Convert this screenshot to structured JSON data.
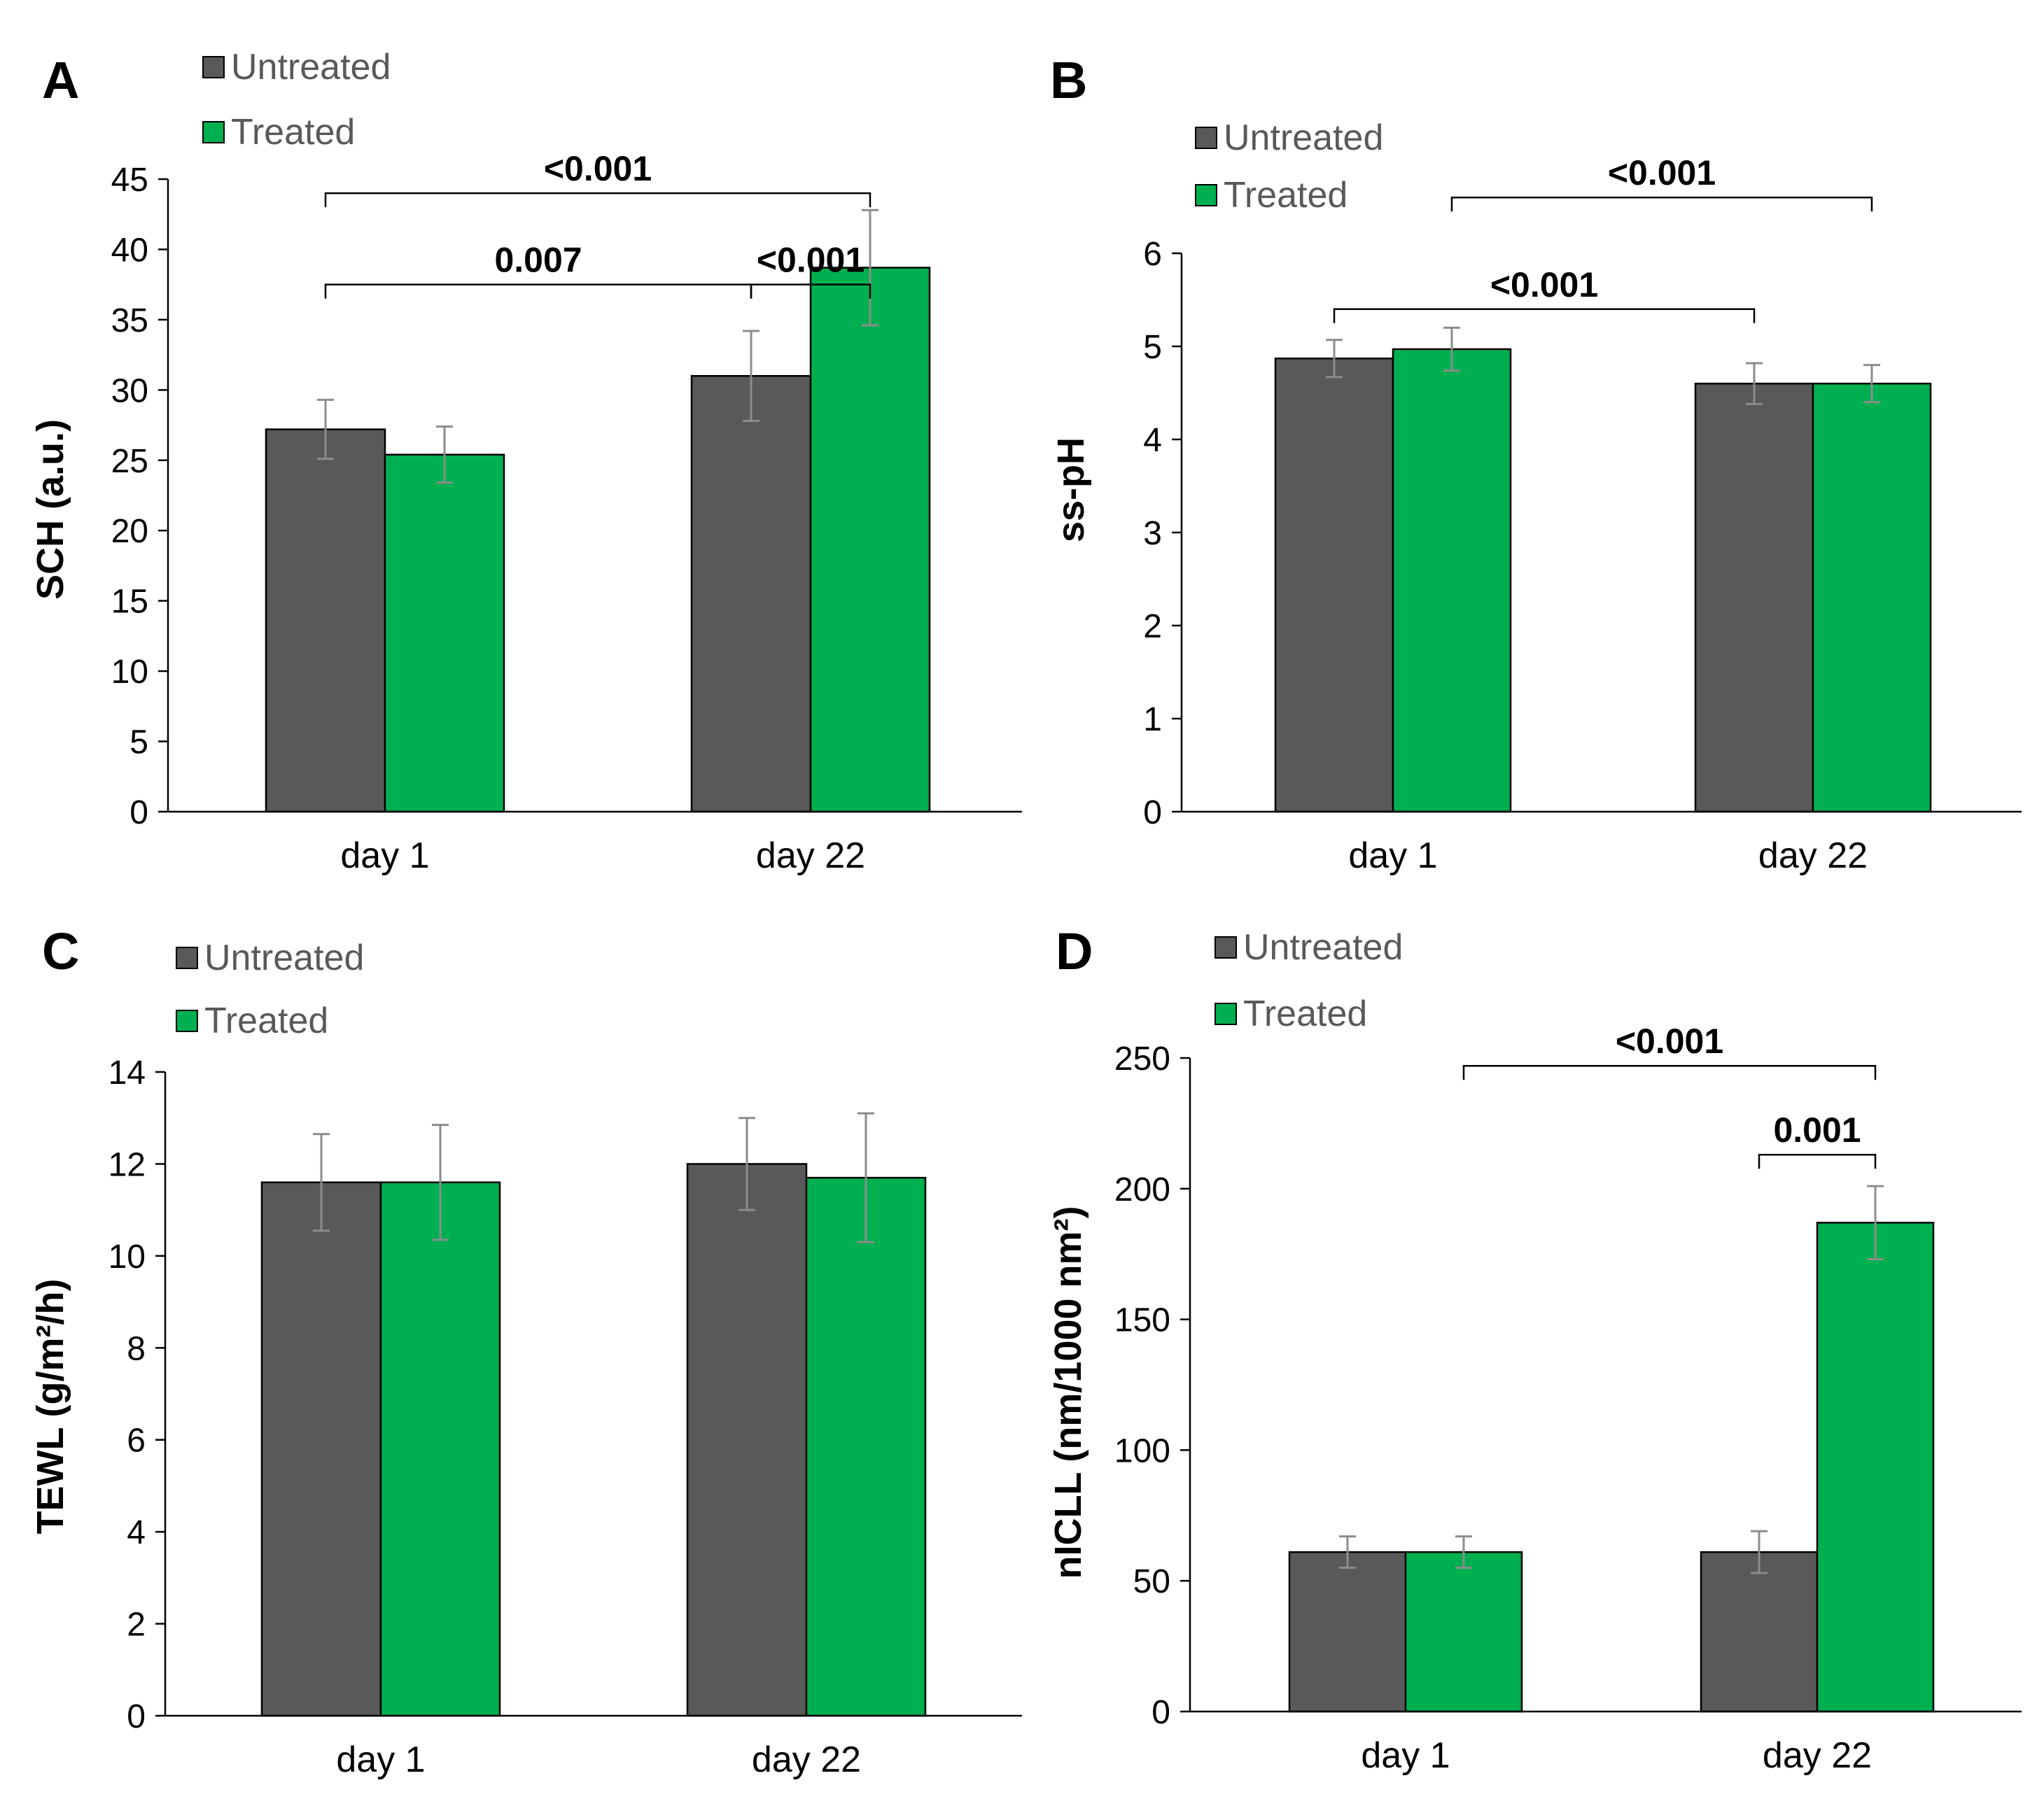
{
  "colors": {
    "untreated": "#595959",
    "treated": "#00b050",
    "error_bar": "#8c8c8c",
    "axis": "#000000"
  },
  "chart_data": [
    {
      "panel": "A",
      "type": "bar",
      "categories": [
        "day 1",
        "day 22"
      ],
      "ylabel": "SCH (a.u.)",
      "ylim": [
        0,
        45
      ],
      "yticks": [
        0,
        5,
        10,
        15,
        20,
        25,
        30,
        35,
        40,
        45
      ],
      "legend": [
        "Untreated",
        "Treated"
      ],
      "series": [
        {
          "name": "Untreated",
          "values": [
            27.2,
            31.0
          ],
          "errors": [
            2.1,
            3.2
          ]
        },
        {
          "name": "Treated",
          "values": [
            25.4,
            38.7
          ],
          "errors": [
            2.0,
            4.1
          ]
        }
      ],
      "annotations": [
        {
          "text": "<0.001",
          "from": [
            0,
            0
          ],
          "to": [
            1,
            1
          ],
          "level": 44.0
        },
        {
          "text": "<0.001",
          "from": [
            1,
            0
          ],
          "to": [
            1,
            1
          ],
          "level": 37.5
        },
        {
          "text": "0.007",
          "from": [
            0,
            0
          ],
          "to": [
            1,
            0
          ],
          "level": 37.5
        }
      ]
    },
    {
      "panel": "B",
      "type": "bar",
      "categories": [
        "day 1",
        "day 22"
      ],
      "ylabel": "ss-pH",
      "ylim": [
        0,
        6
      ],
      "yticks": [
        0,
        1,
        2,
        3,
        4,
        5,
        6
      ],
      "legend": [
        "Untreated",
        "Treated"
      ],
      "series": [
        {
          "name": "Untreated",
          "values": [
            4.87,
            4.6
          ],
          "errors": [
            0.2,
            0.22
          ]
        },
        {
          "name": "Treated",
          "values": [
            4.97,
            4.6
          ],
          "errors": [
            0.23,
            0.2
          ]
        }
      ],
      "annotations": [
        {
          "text": "<0.001",
          "from": [
            0,
            1
          ],
          "to": [
            1,
            1
          ],
          "level": 6.6
        },
        {
          "text": "<0.001",
          "from": [
            0,
            0
          ],
          "to": [
            1,
            0
          ],
          "level": 5.4
        }
      ]
    },
    {
      "panel": "C",
      "type": "bar",
      "categories": [
        "day 1",
        "day 22"
      ],
      "ylabel": "TEWL (g/m²/h)",
      "ylim": [
        0,
        14
      ],
      "yticks": [
        0,
        2,
        4,
        6,
        8,
        10,
        12,
        14
      ],
      "legend": [
        "Untreated",
        "Treated"
      ],
      "series": [
        {
          "name": "Untreated",
          "values": [
            11.6,
            12.0
          ],
          "errors": [
            1.05,
            1.0
          ]
        },
        {
          "name": "Treated",
          "values": [
            11.6,
            11.7
          ],
          "errors": [
            1.25,
            1.4
          ]
        }
      ],
      "annotations": []
    },
    {
      "panel": "D",
      "type": "bar",
      "categories": [
        "day 1",
        "day 22"
      ],
      "ylabel": "nICLL (nm/1000 nm²)",
      "ylim": [
        0,
        250
      ],
      "yticks": [
        0,
        50,
        100,
        150,
        200,
        250
      ],
      "legend": [
        "Untreated",
        "Treated"
      ],
      "series": [
        {
          "name": "Untreated",
          "values": [
            61,
            61
          ],
          "errors": [
            6,
            8
          ]
        },
        {
          "name": "Treated",
          "values": [
            61,
            187
          ],
          "errors": [
            6,
            14
          ]
        }
      ],
      "annotations": [
        {
          "text": "<0.001",
          "from": [
            0,
            1
          ],
          "to": [
            1,
            1
          ],
          "level": 247
        },
        {
          "text": "0.001",
          "from": [
            1,
            0
          ],
          "to": [
            1,
            1
          ],
          "level": 213
        }
      ]
    }
  ]
}
